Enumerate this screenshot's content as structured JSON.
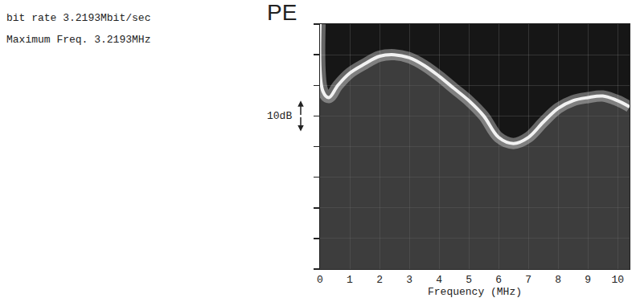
{
  "chart_data": {
    "type": "line",
    "title": "PE",
    "xlabel": "Frequency (MHz)",
    "annotations": [
      {
        "text": "bit rate 3.2193Mbit/sec"
      },
      {
        "text": "Maximum Freq. 3.2193MHz"
      },
      {
        "text": "10dB",
        "y": [
          45,
          55
        ]
      }
    ],
    "x": [
      0,
      0.1,
      0.3,
      0.6,
      1,
      1.5,
      2,
      2.5,
      3,
      3.5,
      4,
      4.5,
      5,
      5.5,
      6,
      6.5,
      7,
      7.5,
      8,
      8.5,
      9,
      9.5,
      10,
      10.4
    ],
    "values": [
      80,
      58,
      56,
      60,
      64,
      67,
      69.5,
      70,
      69,
      66.5,
      63,
      59,
      55,
      50,
      43,
      41,
      43,
      48,
      52.5,
      55,
      56,
      56.5,
      55,
      53
    ],
    "xlim": [
      0,
      10.4
    ],
    "ylim": [
      0,
      80
    ],
    "xticks": [
      0,
      1,
      2,
      3,
      4,
      5,
      6,
      7,
      8,
      9,
      10
    ],
    "yticks": [
      0,
      10,
      20,
      30,
      40,
      50,
      60,
      70,
      80
    ],
    "tick_labels": "x",
    "grid": true,
    "color": "#f2f2f2"
  }
}
